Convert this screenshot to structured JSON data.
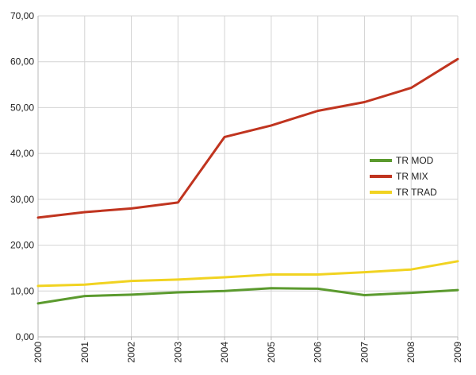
{
  "chart_data": {
    "type": "line",
    "title": "",
    "xlabel": "",
    "ylabel": "",
    "categories": [
      "2000",
      "2001",
      "2002",
      "2003",
      "2004",
      "2005",
      "2006",
      "2007",
      "2008",
      "2009"
    ],
    "ylim": [
      0,
      70
    ],
    "yticks": [
      "0,00",
      "10,00",
      "20,00",
      "30,00",
      "40,00",
      "50,00",
      "60,00",
      "70,00"
    ],
    "grid": true,
    "legend_position": "right",
    "series": [
      {
        "name": "TR MOD",
        "color": "#5b9a2e",
        "values": [
          7.3,
          8.9,
          9.2,
          9.7,
          10.0,
          10.6,
          10.5,
          9.1,
          9.6,
          10.2
        ]
      },
      {
        "name": "TR MIX",
        "color": "#c0341f",
        "values": [
          26.0,
          27.2,
          28.0,
          29.3,
          43.6,
          46.1,
          49.3,
          51.2,
          54.3,
          60.6
        ]
      },
      {
        "name": "TR TRAD",
        "color": "#f1d321",
        "values": [
          11.1,
          11.4,
          12.2,
          12.5,
          13.0,
          13.6,
          13.6,
          14.1,
          14.7,
          16.5
        ]
      }
    ]
  }
}
